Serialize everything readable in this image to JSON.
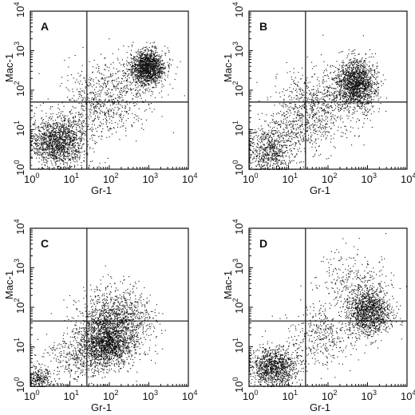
{
  "figure_labels": {
    "xlabel": "Gr-1",
    "ylabel": "Mac-1"
  },
  "colors": {
    "points": "#111111",
    "axes": "#111111",
    "background": "#ffffff"
  },
  "chart_data": [
    {
      "type": "scatter",
      "panel": "A",
      "xlabel": "Gr-1",
      "ylabel": "Mac-1",
      "xscale": "log",
      "yscale": "log",
      "xlim": [
        1,
        10000
      ],
      "ylim": [
        1,
        10000
      ],
      "xticks": [
        "10^0",
        "10^1",
        "10^2",
        "10^3",
        "10^4"
      ],
      "yticks": [
        "10^0",
        "10^1",
        "10^2",
        "10^3",
        "10^4"
      ],
      "gates": {
        "x": 27,
        "y": 50
      },
      "populations": [
        {
          "center": [
            5,
            5
          ],
          "spread": [
            0.35,
            0.3
          ],
          "n": 1500
        },
        {
          "center": [
            900,
            380
          ],
          "spread": [
            0.22,
            0.22
          ],
          "n": 1500
        },
        {
          "center": [
            120,
            90
          ],
          "spread": [
            0.55,
            0.45
          ],
          "n": 500
        },
        {
          "center": [
            40,
            30
          ],
          "spread": [
            0.45,
            0.35
          ],
          "n": 300
        }
      ]
    },
    {
      "type": "scatter",
      "panel": "B",
      "xlabel": "Gr-1",
      "ylabel": "Mac-1",
      "xscale": "log",
      "yscale": "log",
      "xlim": [
        1,
        10000
      ],
      "ylim": [
        1,
        10000
      ],
      "xticks": [
        "10^0",
        "10^1",
        "10^2",
        "10^3",
        "10^4"
      ],
      "yticks": [
        "10^0",
        "10^1",
        "10^2",
        "10^3",
        "10^4"
      ],
      "gates": {
        "x": 27,
        "y": 50
      },
      "populations": [
        {
          "center": [
            3,
            3
          ],
          "spread": [
            0.35,
            0.3
          ],
          "n": 700
        },
        {
          "center": [
            500,
            150
          ],
          "spread": [
            0.25,
            0.3
          ],
          "n": 1600
        },
        {
          "center": [
            60,
            40
          ],
          "spread": [
            0.5,
            0.45
          ],
          "n": 700
        },
        {
          "center": [
            15,
            12
          ],
          "spread": [
            0.45,
            0.4
          ],
          "n": 300
        }
      ]
    },
    {
      "type": "scatter",
      "panel": "C",
      "xlabel": "Gr-1",
      "ylabel": "Mac-1",
      "xscale": "log",
      "yscale": "log",
      "xlim": [
        1,
        10000
      ],
      "ylim": [
        1,
        10000
      ],
      "xticks": [
        "10^0",
        "10^1",
        "10^2",
        "10^3",
        "10^4"
      ],
      "yticks": [
        "10^0",
        "10^1",
        "10^2",
        "10^3",
        "10^4"
      ],
      "gates": {
        "x": 27,
        "y": 45
      },
      "populations": [
        {
          "center": [
            80,
            12
          ],
          "spread": [
            0.35,
            0.3
          ],
          "n": 1600
        },
        {
          "center": [
            150,
            50
          ],
          "spread": [
            0.45,
            0.4
          ],
          "n": 1200
        },
        {
          "center": [
            15,
            5
          ],
          "spread": [
            0.45,
            0.3
          ],
          "n": 350
        },
        {
          "center": [
            1.6,
            1.6
          ],
          "spread": [
            0.18,
            0.15
          ],
          "n": 250
        }
      ]
    },
    {
      "type": "scatter",
      "panel": "D",
      "xlabel": "Gr-1",
      "ylabel": "Mac-1",
      "xscale": "log",
      "yscale": "log",
      "xlim": [
        1,
        10000
      ],
      "ylim": [
        1,
        10000
      ],
      "xticks": [
        "10^0",
        "10^1",
        "10^2",
        "10^3",
        "10^4"
      ],
      "yticks": [
        "10^0",
        "10^1",
        "10^2",
        "10^3",
        "10^4"
      ],
      "gates": {
        "x": 27,
        "y": 45
      },
      "populations": [
        {
          "center": [
            4,
            3
          ],
          "spread": [
            0.3,
            0.25
          ],
          "n": 1100
        },
        {
          "center": [
            1100,
            80
          ],
          "spread": [
            0.28,
            0.3
          ],
          "n": 1300
        },
        {
          "center": [
            60,
            20
          ],
          "spread": [
            0.45,
            0.4
          ],
          "n": 400
        },
        {
          "center": [
            400,
            500
          ],
          "spread": [
            0.45,
            0.35
          ],
          "n": 250
        }
      ]
    }
  ]
}
